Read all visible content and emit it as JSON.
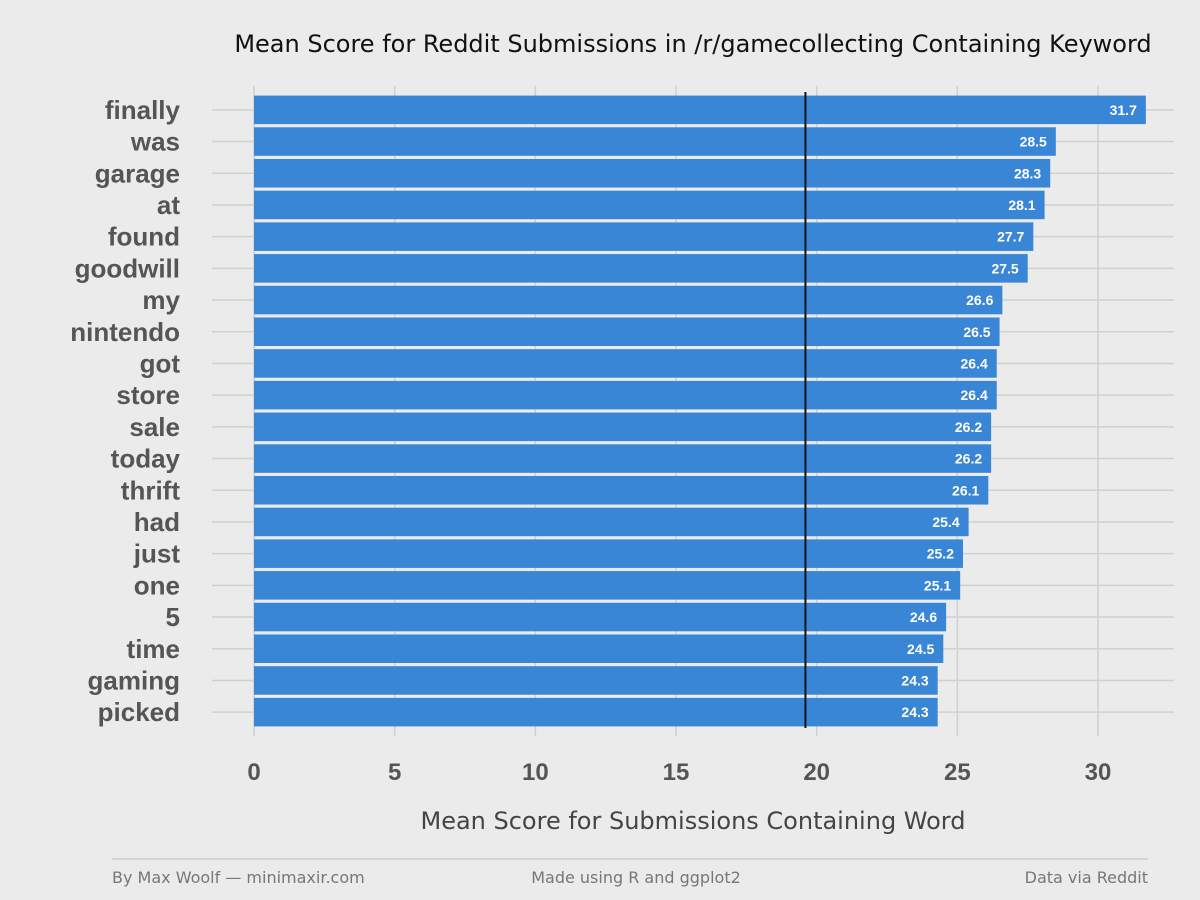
{
  "chart_data": {
    "type": "bar",
    "orientation": "horizontal",
    "title": "Mean Score for Reddit Submissions in /r/gamecollecting Containing Keyword",
    "xlabel": "Mean Score for Submissions Containing Word",
    "ylabel": "",
    "categories": [
      "finally",
      "was",
      "garage",
      "at",
      "found",
      "goodwill",
      "my",
      "nintendo",
      "got",
      "store",
      "sale",
      "today",
      "thrift",
      "had",
      "just",
      "one",
      "5",
      "time",
      "gaming",
      "picked"
    ],
    "values": [
      31.7,
      28.5,
      28.3,
      28.1,
      27.7,
      27.5,
      26.6,
      26.5,
      26.4,
      26.4,
      26.2,
      26.2,
      26.1,
      25.4,
      25.2,
      25.1,
      24.6,
      24.5,
      24.3,
      24.3
    ],
    "value_labels": [
      "31.7",
      "28.5",
      "28.3",
      "28.1",
      "27.7",
      "27.5",
      "26.6",
      "26.5",
      "26.4",
      "26.4",
      "26.2",
      "26.2",
      "26.1",
      "25.4",
      "25.2",
      "25.1",
      "24.6",
      "24.5",
      "24.3",
      "24.3"
    ],
    "xlim": [
      0,
      32.7
    ],
    "xticks": [
      0,
      5,
      10,
      15,
      20,
      25,
      30
    ],
    "xtick_labels": [
      "0",
      "5",
      "10",
      "15",
      "20",
      "25",
      "30"
    ],
    "reference_line": 19.6,
    "grid": true,
    "bar_color": "#3a86d6",
    "reference_line_color": "#111111"
  },
  "footer": {
    "left": "By Max Woolf — minimaxir.com",
    "center": "Made using R and ggplot2",
    "right": "Data via Reddit"
  }
}
